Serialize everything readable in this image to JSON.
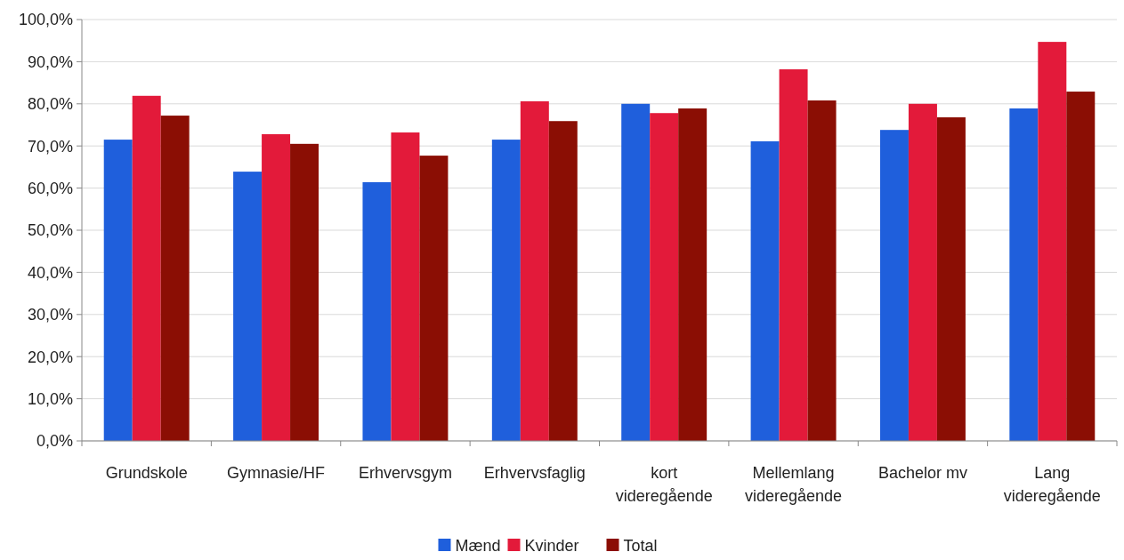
{
  "chart_data": {
    "type": "bar",
    "categories": [
      "Grundskole",
      "Gymnasie/HF",
      "Erhvervsgym",
      "Erhvervsfaglig",
      "kort videregående",
      "Mellemlang videregående",
      "Bachelor mv",
      "Lang videregående"
    ],
    "series": [
      {
        "name": "Mænd",
        "color": "#1f5fdc",
        "values": [
          71.5,
          63.9,
          61.4,
          71.5,
          80.0,
          71.1,
          73.8,
          78.9
        ]
      },
      {
        "name": "Kvinder",
        "color": "#e31a3a",
        "values": [
          81.9,
          72.8,
          73.2,
          80.6,
          77.8,
          88.2,
          80.0,
          94.7
        ]
      },
      {
        "name": "Total",
        "color": "#8b0e04",
        "values": [
          77.2,
          70.5,
          67.7,
          75.9,
          78.9,
          80.8,
          76.8,
          82.9
        ]
      }
    ],
    "ylim": [
      0,
      100
    ],
    "yticks": [
      {
        "value": 0,
        "label": "0,0%"
      },
      {
        "value": 10,
        "label": "10,0%"
      },
      {
        "value": 20,
        "label": "20,0%"
      },
      {
        "value": 30,
        "label": "30,0%"
      },
      {
        "value": 40,
        "label": "40,0%"
      },
      {
        "value": 50,
        "label": "50,0%"
      },
      {
        "value": 60,
        "label": "60,0%"
      },
      {
        "value": 70,
        "label": "70,0%"
      },
      {
        "value": 80,
        "label": "80,0%"
      },
      {
        "value": 90,
        "label": "90,0%"
      },
      {
        "value": 100,
        "label": "100,0%"
      }
    ],
    "grid": "y",
    "legend": "bottom"
  }
}
